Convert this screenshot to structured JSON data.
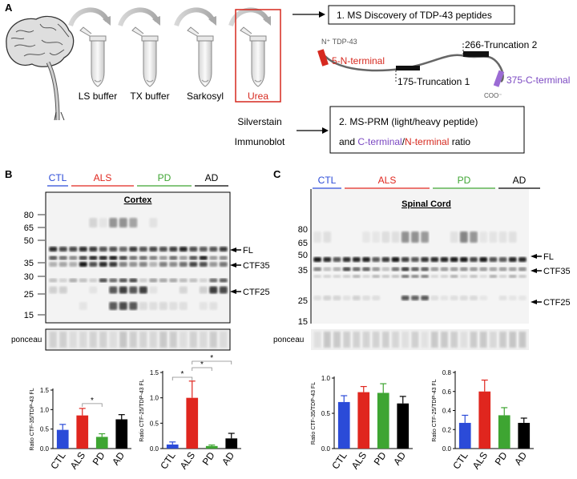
{
  "panel_a": {
    "label": "A",
    "buffers": [
      "LS buffer",
      "TX buffer",
      "Sarkosyl",
      "Urea"
    ],
    "box1": "1. MS Discovery of TDP-43 peptides",
    "protein_n_label": "N⁺ TDP-43",
    "n_terminal": "5-N-terminal",
    "trunc1": "175-Truncation 1",
    "trunc2": "266-Truncation 2",
    "c_terminal": "375-C-terminal",
    "coo": "COO⁻",
    "methods": [
      "Silverstain",
      "Immunoblot"
    ],
    "box2_line1": "2. MS-PRM (light/heavy peptide)",
    "box2_line2_c": "C-terminal",
    "box2_line2_slash": "/",
    "box2_line2_n": "N-terminal",
    "box2_line2_end": " ratio"
  },
  "panel_b": {
    "label": "B",
    "groups": [
      {
        "name": "CTL",
        "color": "#2b4bd8"
      },
      {
        "name": "ALS",
        "color": "#e0261e"
      },
      {
        "name": "PD",
        "color": "#3ea532"
      },
      {
        "name": "AD",
        "color": "#000000"
      }
    ],
    "blot_title": "Cortex",
    "mw": [
      "80",
      "65",
      "50",
      "35",
      "30",
      "25",
      "15"
    ],
    "bands": [
      "FL",
      "CTF35",
      "CTF25"
    ],
    "ponceau": "ponceau"
  },
  "panel_c": {
    "label": "C",
    "blot_title": "Spinal Cord",
    "mw": [
      "80",
      "65",
      "50",
      "35",
      "25",
      "15"
    ],
    "bands": [
      "FL",
      "CTF35",
      "CTF25"
    ],
    "ponceau": "ponceau"
  },
  "chart_data": [
    {
      "type": "bar",
      "panel": "B-left",
      "categories": [
        "CTL",
        "ALS",
        "PD",
        "AD"
      ],
      "values": [
        0.48,
        0.85,
        0.3,
        0.75
      ],
      "errors": [
        0.14,
        0.18,
        0.08,
        0.12
      ],
      "colors": [
        "#2b4bd8",
        "#e0261e",
        "#3ea532",
        "#000000"
      ],
      "ylabel": "Ratio CTF-35/TDP-43 FL",
      "ylim": [
        0,
        1.5
      ],
      "yticks": [
        "0.0",
        "0.5",
        "1.0",
        "1.5"
      ],
      "significance": [
        {
          "from": 1,
          "to": 2,
          "mark": "*"
        }
      ]
    },
    {
      "type": "bar",
      "panel": "B-right",
      "categories": [
        "CTL",
        "ALS",
        "PD",
        "AD"
      ],
      "values": [
        0.08,
        1.0,
        0.05,
        0.2
      ],
      "errors": [
        0.05,
        0.33,
        0.02,
        0.1
      ],
      "colors": [
        "#2b4bd8",
        "#e0261e",
        "#3ea532",
        "#000000"
      ],
      "ylabel": "Ratio CTF-25/TDP-43 FL",
      "ylim": [
        0,
        1.5
      ],
      "yticks": [
        "0.0",
        "0.5",
        "1.0",
        "1.5"
      ],
      "significance": [
        {
          "from": 0,
          "to": 1,
          "mark": "*"
        },
        {
          "from": 1,
          "to": 2,
          "mark": "*"
        },
        {
          "from": 1,
          "to": 3,
          "mark": "*"
        }
      ]
    },
    {
      "type": "bar",
      "panel": "C-left",
      "categories": [
        "CTL",
        "ALS",
        "PD",
        "AD"
      ],
      "values": [
        0.66,
        0.8,
        0.79,
        0.64
      ],
      "errors": [
        0.09,
        0.08,
        0.13,
        0.1
      ],
      "colors": [
        "#2b4bd8",
        "#e0261e",
        "#3ea532",
        "#000000"
      ],
      "ylabel": "Ratio CTF-35/TDP-43 FL",
      "ylim": [
        0,
        1.0
      ],
      "yticks": [
        "0.0",
        "0.5",
        "1.0"
      ],
      "significance": []
    },
    {
      "type": "bar",
      "panel": "C-right",
      "categories": [
        "CTL",
        "ALS",
        "PD",
        "AD"
      ],
      "values": [
        0.27,
        0.6,
        0.35,
        0.27
      ],
      "errors": [
        0.08,
        0.12,
        0.08,
        0.05
      ],
      "colors": [
        "#2b4bd8",
        "#e0261e",
        "#3ea532",
        "#000000"
      ],
      "ylabel": "Ratio CTF-25/TDP-43 FL",
      "ylim": [
        0,
        0.8
      ],
      "yticks": [
        "0.0",
        "0.2",
        "0.4",
        "0.6",
        "0.8"
      ],
      "significance": []
    }
  ]
}
